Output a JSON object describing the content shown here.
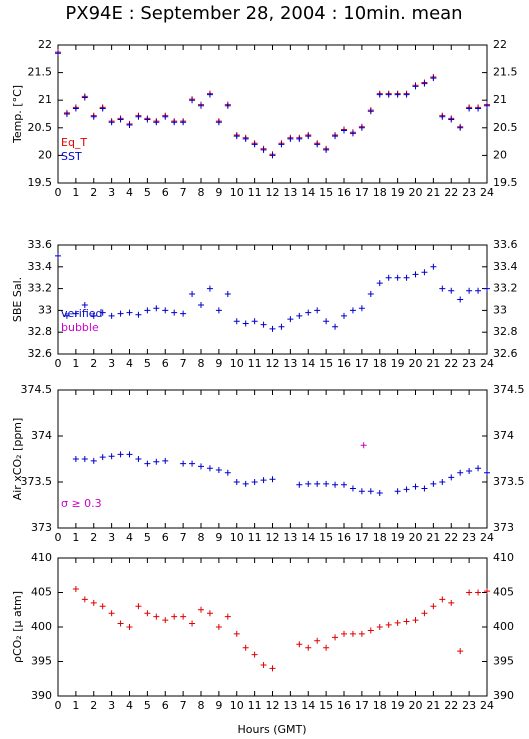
{
  "title": "PX94E : September 28, 2004 : 10min. mean",
  "xlabel": "Hours (GMT)",
  "chart_data": [
    {
      "type": "scatter",
      "ylabel": "Temp. [°C]",
      "xlim": [
        0,
        24
      ],
      "xticks": [
        0,
        1,
        2,
        3,
        4,
        5,
        6,
        7,
        8,
        9,
        10,
        11,
        12,
        13,
        14,
        15,
        16,
        17,
        18,
        19,
        20,
        21,
        22,
        23,
        24
      ],
      "ylim": [
        19.5,
        22
      ],
      "yticks": [
        19.5,
        20,
        20.5,
        21,
        21.5,
        22
      ],
      "x": [
        0,
        0.5,
        1,
        1.5,
        2,
        2.5,
        3,
        3.5,
        4,
        4.5,
        5,
        5.5,
        6,
        6.5,
        7,
        7.5,
        8,
        8.5,
        9,
        9.5,
        10,
        10.5,
        11,
        11.5,
        12,
        12.5,
        13,
        13.5,
        14,
        14.5,
        15,
        15.5,
        16,
        16.5,
        17,
        17.5,
        18,
        18.5,
        19,
        19.5,
        20,
        20.5,
        21,
        21.5,
        22,
        22.5,
        23,
        23.5,
        24
      ],
      "series": [
        {
          "name": "Eq_T",
          "color": "#e00000",
          "values": [
            21.87,
            20.77,
            20.87,
            21.07,
            20.72,
            20.87,
            20.62,
            20.67,
            20.57,
            20.72,
            20.67,
            20.62,
            20.72,
            20.62,
            20.62,
            21.02,
            20.92,
            21.12,
            20.62,
            20.92,
            20.37,
            20.32,
            20.22,
            20.12,
            20.02,
            20.22,
            20.32,
            20.32,
            20.37,
            20.22,
            20.12,
            20.37,
            20.47,
            20.42,
            20.52,
            20.82,
            21.12,
            21.12,
            21.12,
            21.12,
            21.27,
            21.32,
            21.42,
            20.72,
            20.67,
            20.52,
            20.87,
            20.87,
            20.92
          ]
        },
        {
          "name": "SST",
          "color": "#0000cc",
          "values": [
            21.85,
            20.75,
            20.85,
            21.05,
            20.7,
            20.85,
            20.6,
            20.65,
            20.55,
            20.7,
            20.65,
            20.6,
            20.7,
            20.6,
            20.6,
            21.0,
            20.9,
            21.1,
            20.6,
            20.9,
            20.35,
            20.3,
            20.2,
            20.1,
            20.0,
            20.2,
            20.3,
            20.3,
            20.35,
            20.2,
            20.1,
            20.35,
            20.45,
            20.4,
            20.5,
            20.8,
            21.1,
            21.1,
            21.1,
            21.1,
            21.25,
            21.3,
            21.4,
            20.7,
            20.65,
            20.5,
            20.85,
            20.85,
            20.9
          ]
        }
      ]
    },
    {
      "type": "scatter",
      "ylabel": "SBE Sal.",
      "xlim": [
        0,
        24
      ],
      "xticks": [
        0,
        1,
        2,
        3,
        4,
        5,
        6,
        7,
        8,
        9,
        10,
        11,
        12,
        13,
        14,
        15,
        16,
        17,
        18,
        19,
        20,
        21,
        22,
        23,
        24
      ],
      "ylim": [
        32.6,
        33.6
      ],
      "yticks": [
        32.6,
        32.8,
        33,
        33.2,
        33.4,
        33.6
      ],
      "x": [
        0,
        0.5,
        1,
        1.5,
        2,
        2.5,
        3,
        3.5,
        4,
        4.5,
        5,
        5.5,
        6,
        6.5,
        7,
        7.5,
        8,
        8.5,
        9,
        9.5,
        10,
        10.5,
        11,
        11.5,
        12,
        12.5,
        13,
        13.5,
        14,
        14.5,
        15,
        15.5,
        16,
        16.5,
        17,
        17.5,
        18,
        18.5,
        19,
        19.5,
        20,
        20.5,
        21,
        21.5,
        22,
        22.5,
        23,
        23.5,
        24
      ],
      "series": [
        {
          "name": "verified",
          "color": "#0000cc",
          "values": [
            33.5,
            32.95,
            32.97,
            33.05,
            32.95,
            32.98,
            32.95,
            32.97,
            32.98,
            32.96,
            33.0,
            33.02,
            33.0,
            32.98,
            32.97,
            33.15,
            33.05,
            33.2,
            33.0,
            33.15,
            32.9,
            32.88,
            32.9,
            32.87,
            32.83,
            32.85,
            32.92,
            32.95,
            32.98,
            33.0,
            32.9,
            32.85,
            32.95,
            33.0,
            33.02,
            33.15,
            33.25,
            33.3,
            33.3,
            33.3,
            33.33,
            33.35,
            33.4,
            33.2,
            33.18,
            33.1,
            33.18,
            33.18,
            33.2
          ]
        },
        {
          "name": "bubble",
          "color": "#cc00cc",
          "x": [],
          "values": []
        }
      ]
    },
    {
      "type": "scatter",
      "ylabel": "Air xCO₂ [ppm]",
      "annotation": "σ ≥ 0.3",
      "annotation_color": "#cc00cc",
      "xlim": [
        0,
        24
      ],
      "xticks": [
        0,
        1,
        2,
        3,
        4,
        5,
        6,
        7,
        8,
        9,
        10,
        11,
        12,
        13,
        14,
        15,
        16,
        17,
        18,
        19,
        20,
        21,
        22,
        23,
        24
      ],
      "ylim": [
        373,
        374.5
      ],
      "yticks": [
        373,
        373.5,
        374,
        374.5
      ],
      "x": [
        0,
        0.5,
        1,
        1.5,
        2,
        2.5,
        3,
        3.5,
        4,
        4.5,
        5,
        5.5,
        6,
        6.5,
        7,
        7.5,
        8,
        8.5,
        9,
        9.5,
        10,
        10.5,
        11,
        11.5,
        12,
        12.5,
        13,
        13.5,
        14,
        14.5,
        15,
        15.5,
        16,
        16.5,
        17,
        17.5,
        18,
        18.5,
        19,
        19.5,
        20,
        20.5,
        21,
        21.5,
        22,
        22.5,
        23,
        23.5,
        24
      ],
      "series": [
        {
          "color": "#0000cc",
          "values": [
            null,
            null,
            373.75,
            373.75,
            373.73,
            373.77,
            373.78,
            373.8,
            373.8,
            373.75,
            373.7,
            373.72,
            373.73,
            null,
            373.7,
            373.7,
            373.67,
            373.65,
            373.63,
            373.6,
            373.5,
            373.48,
            373.5,
            373.52,
            373.53,
            null,
            null,
            373.47,
            373.48,
            373.48,
            373.48,
            373.47,
            373.47,
            373.43,
            373.4,
            373.4,
            373.38,
            null,
            373.4,
            373.42,
            373.45,
            373.43,
            373.48,
            373.5,
            373.55,
            373.6,
            373.62,
            373.65,
            373.6
          ]
        },
        {
          "color": "#cc00cc",
          "x": [
            17.1
          ],
          "values": [
            373.9
          ]
        }
      ]
    },
    {
      "type": "scatter",
      "ylabel": "ρCO₂ [μ atm]",
      "xlim": [
        0,
        24
      ],
      "xticks": [
        0,
        1,
        2,
        3,
        4,
        5,
        6,
        7,
        8,
        9,
        10,
        11,
        12,
        13,
        14,
        15,
        16,
        17,
        18,
        19,
        20,
        21,
        22,
        23,
        24
      ],
      "ylim": [
        390,
        410
      ],
      "yticks": [
        390,
        395,
        400,
        405,
        410
      ],
      "x": [
        0,
        0.5,
        1,
        1.5,
        2,
        2.5,
        3,
        3.5,
        4,
        4.5,
        5,
        5.5,
        6,
        6.5,
        7,
        7.5,
        8,
        8.5,
        9,
        9.5,
        10,
        10.5,
        11,
        11.5,
        12,
        12.5,
        13,
        13.5,
        14,
        14.5,
        15,
        15.5,
        16,
        16.5,
        17,
        17.5,
        18,
        18.5,
        19,
        19.5,
        20,
        20.5,
        21,
        21.5,
        22,
        22.5,
        23,
        23.5,
        24
      ],
      "series": [
        {
          "color": "#e00000",
          "values": [
            null,
            null,
            405.5,
            404,
            403.5,
            403,
            402,
            400.5,
            400,
            403,
            402,
            401.5,
            401,
            401.5,
            401.5,
            400.5,
            402.5,
            402,
            400,
            401.5,
            399,
            397,
            396,
            394.5,
            394,
            null,
            null,
            397.5,
            397,
            398,
            397,
            398.5,
            399,
            399,
            399,
            399.5,
            400,
            400.3,
            400.6,
            400.8,
            401,
            402,
            403,
            404,
            403.5,
            396.5,
            405,
            405,
            405.2
          ]
        }
      ]
    }
  ]
}
